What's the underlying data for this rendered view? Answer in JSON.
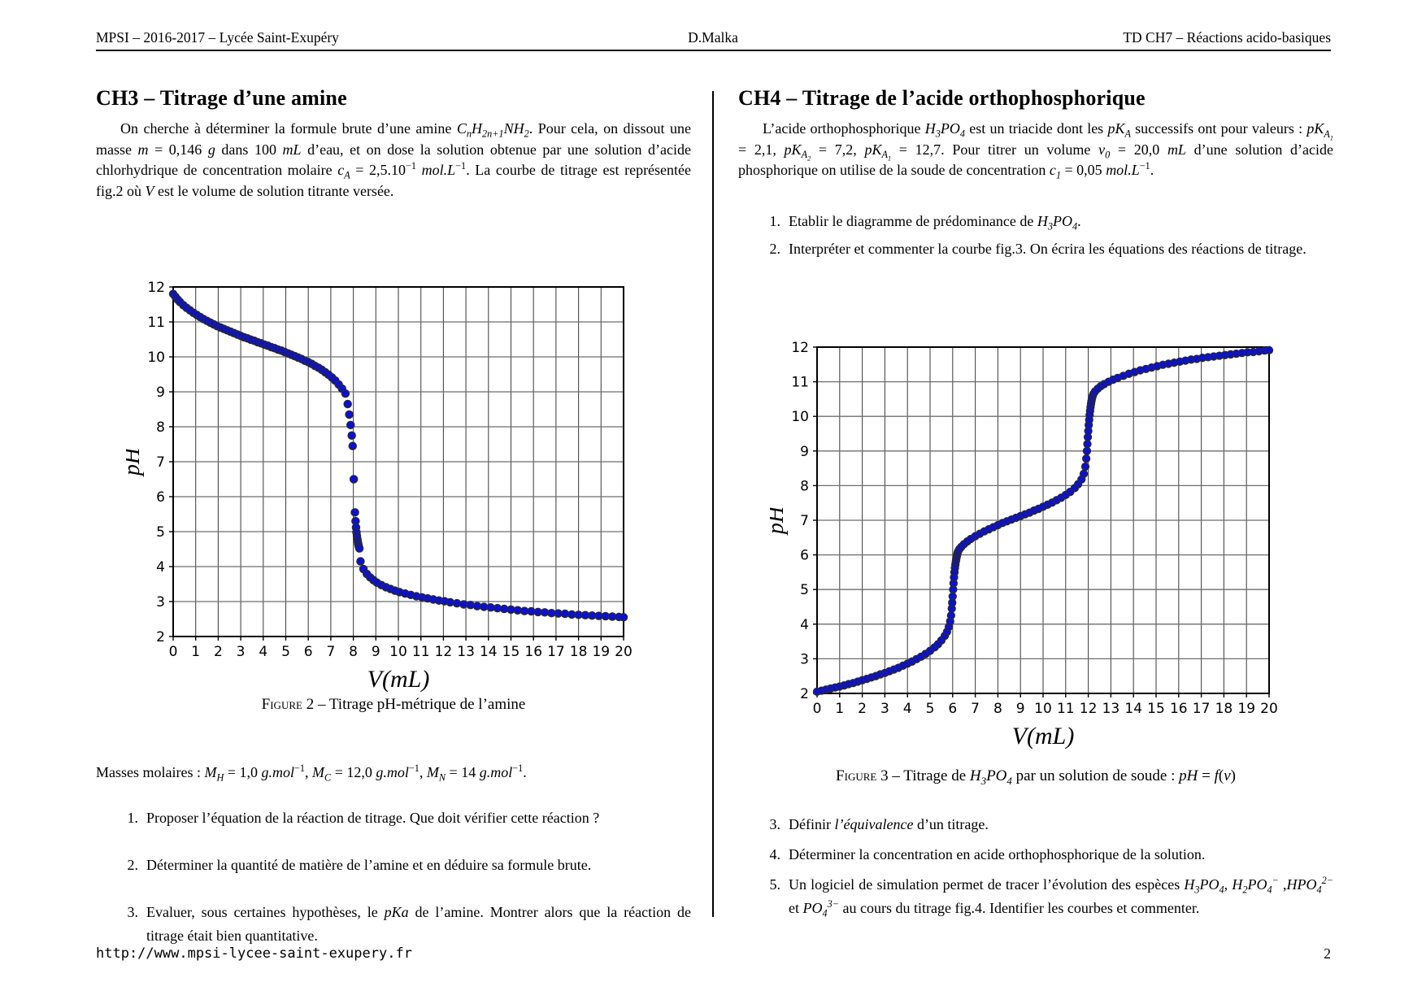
{
  "header": {
    "left": "MPSI – 2016-2017 – Lycée Saint-Exupéry",
    "center": "D.Malka",
    "right": "TD CH7 – Réactions acido-basiques"
  },
  "footer": {
    "url": "http://www.mpsi-lycee-saint-exupery.fr",
    "page_number": "2"
  },
  "left_column": {
    "title": "CH3 – Titrage d’une amine",
    "intro_html": "On cherche à déterminer la formule brute d’une amine <i>C<sub>n</sub>H<sub>2n+1</sub>NH<sub>2</sub></i>. Pour cela, on dissout une masse <i>m</i> = 0,146 <i>g</i> dans 100 <i>mL</i> d’eau, et on dose la solution obtenue par une solution d’acide chlorhydrique de concentration molaire <i>c<sub>A</sub></i> = 2,5.10<sup>−1</sup> <i>mol.L</i><sup>−1</sup>. La courbe de titrage est représentée fig.2 où <i>V</i> est le volume de solution titrante versée.",
    "figure2_caption_label": "Figure 2",
    "figure2_caption_html": "– Titrage pH-métrique de l’amine",
    "masses_html": "Masses molaires : <i>M<sub>H</sub></i> = 1,0 <i>g.mol</i><sup>−1</sup>, <i>M<sub>C</sub></i> = 12,0 <i>g.mol</i><sup>−1</sup>, <i>M<sub>N</sub></i> = 14 <i>g.mol</i><sup>−1</sup>.",
    "items": [
      {
        "num": "1.",
        "html": "Proposer l’équation de la réaction de titrage. Que doit vérifier cette réaction ?"
      },
      {
        "num": "2.",
        "html": "Déterminer la quantité de matière de l’amine et en déduire sa formule brute."
      },
      {
        "num": "3.",
        "html": "Evaluer, sous certaines hypothèses, le <i>pKa</i> de l’amine. Montrer alors que la réaction de titrage était bien quantitative."
      }
    ]
  },
  "right_column": {
    "title": "CH4 – Titrage de l’acide orthophosphorique",
    "intro_html": "L’acide orthophosphorique <i>H<sub>3</sub>PO<sub>4</sub></i> est un triacide dont les <i>pK<sub>A</sub></i> successifs ont pour valeurs : <i>pK<sub>A<sub>1</sub></sub></i> = 2,1, <i>pK<sub>A<sub>2</sub></sub></i> = 7,2, <i>pK<sub>A<sub>1</sub></sub></i> = 12,7. Pour titrer un volume <i>v<sub>0</sub></i> = 20,0 <i>mL</i> d’une solution d’acide phosphorique on utilise de la soude de concentration <i>c<sub>1</sub></i> = 0,05 <i>mol.L</i><sup>−1</sup>.",
    "items_top": [
      {
        "num": "1.",
        "html": "Etablir le diagramme de prédominance de <i>H<sub>3</sub>PO<sub>4</sub></i>."
      },
      {
        "num": "2.",
        "html": "Interpréter et commenter la courbe fig.3. On écrira les équations des réactions de titrage."
      }
    ],
    "figure3_caption_label": "Figure 3",
    "figure3_caption_html": "– Titrage de <i>H<sub>3</sub>PO<sub>4</sub></i> par un solution de soude : <i>pH</i> = <i>f</i>(<i>v</i>)",
    "items_bottom": [
      {
        "num": "3.",
        "html": "Définir <i>l’équivalence</i> d’un titrage."
      },
      {
        "num": "4.",
        "html": "Déterminer la concentration en acide orthophosphorique de la solution."
      },
      {
        "num": "5.",
        "html": "Un logiciel de simulation permet de tracer l’évolution des espèces <i>H<sub>3</sub>PO<sub>4</sub></i>, <i>H<sub>2</sub>PO<sub>4</sub><sup>−</sup></i> ,<i>HPO<sub>4</sub><sup>2−</sup></i> et <i>PO<sub>4</sub><sup>3−</sup></i> au cours du titrage fig.4. Identifier les courbes et commenter."
      }
    ]
  },
  "chart_data": [
    {
      "name": "figure-2-titration-amine",
      "type": "scatter",
      "title": "",
      "xlabel": "V(mL)",
      "ylabel": "pH",
      "xlim": [
        0,
        20
      ],
      "ylim": [
        2,
        12
      ],
      "xtick_step": 1,
      "ytick_step": 1,
      "grid": true,
      "legend": "none",
      "marker": {
        "fill": "#0a10d8",
        "edge": "#2a2a2a",
        "radius": 4.6
      },
      "equivalence_volume_mL": 8,
      "points": [
        [
          0,
          11.8
        ],
        [
          0.1,
          11.72
        ],
        [
          0.2,
          11.64
        ],
        [
          0.3,
          11.57
        ],
        [
          0.45,
          11.48
        ],
        [
          0.6,
          11.4
        ],
        [
          0.75,
          11.33
        ],
        [
          0.9,
          11.26
        ],
        [
          1.05,
          11.2
        ],
        [
          1.2,
          11.14
        ],
        [
          1.35,
          11.08
        ],
        [
          1.5,
          11.03
        ],
        [
          1.65,
          10.98
        ],
        [
          1.8,
          10.93
        ],
        [
          1.95,
          10.88
        ],
        [
          2.1,
          10.84
        ],
        [
          2.25,
          10.8
        ],
        [
          2.4,
          10.76
        ],
        [
          2.55,
          10.72
        ],
        [
          2.7,
          10.68
        ],
        [
          2.85,
          10.64
        ],
        [
          3,
          10.6
        ],
        [
          3.15,
          10.56
        ],
        [
          3.3,
          10.53
        ],
        [
          3.45,
          10.49
        ],
        [
          3.6,
          10.46
        ],
        [
          3.75,
          10.42
        ],
        [
          3.9,
          10.39
        ],
        [
          4.05,
          10.35
        ],
        [
          4.2,
          10.32
        ],
        [
          4.35,
          10.28
        ],
        [
          4.5,
          10.25
        ],
        [
          4.65,
          10.21
        ],
        [
          4.8,
          10.18
        ],
        [
          4.95,
          10.14
        ],
        [
          5.1,
          10.1
        ],
        [
          5.25,
          10.06
        ],
        [
          5.4,
          10.02
        ],
        [
          5.55,
          9.98
        ],
        [
          5.7,
          9.94
        ],
        [
          5.85,
          9.89
        ],
        [
          6,
          9.85
        ],
        [
          6.15,
          9.8
        ],
        [
          6.3,
          9.74
        ],
        [
          6.45,
          9.69
        ],
        [
          6.6,
          9.63
        ],
        [
          6.75,
          9.56
        ],
        [
          6.9,
          9.49
        ],
        [
          7.05,
          9.41
        ],
        [
          7.2,
          9.32
        ],
        [
          7.35,
          9.21
        ],
        [
          7.5,
          9.09
        ],
        [
          7.65,
          8.95
        ],
        [
          7.75,
          8.65
        ],
        [
          7.82,
          8.35
        ],
        [
          7.88,
          8.05
        ],
        [
          7.93,
          7.75
        ],
        [
          7.97,
          7.45
        ],
        [
          8.02,
          6.5
        ],
        [
          8.07,
          5.55
        ],
        [
          8.1,
          5.3
        ],
        [
          8.12,
          5.12
        ],
        [
          8.14,
          4.98
        ],
        [
          8.16,
          4.88
        ],
        [
          8.18,
          4.79
        ],
        [
          8.2,
          4.71
        ],
        [
          8.22,
          4.64
        ],
        [
          8.24,
          4.58
        ],
        [
          8.27,
          4.52
        ],
        [
          8.32,
          4.15
        ],
        [
          8.45,
          3.93
        ],
        [
          8.6,
          3.79
        ],
        [
          8.75,
          3.69
        ],
        [
          8.9,
          3.61
        ],
        [
          9.05,
          3.54
        ],
        [
          9.25,
          3.47
        ],
        [
          9.45,
          3.41
        ],
        [
          9.65,
          3.36
        ],
        [
          9.85,
          3.31
        ],
        [
          10.05,
          3.27
        ],
        [
          10.3,
          3.23
        ],
        [
          10.55,
          3.19
        ],
        [
          10.8,
          3.15
        ],
        [
          11.05,
          3.12
        ],
        [
          11.3,
          3.09
        ],
        [
          11.55,
          3.06
        ],
        [
          11.8,
          3.03
        ],
        [
          12.05,
          3.01
        ],
        [
          12.3,
          2.98
        ],
        [
          12.6,
          2.95
        ],
        [
          12.9,
          2.92
        ],
        [
          13.2,
          2.9
        ],
        [
          13.5,
          2.87
        ],
        [
          13.8,
          2.85
        ],
        [
          14.1,
          2.83
        ],
        [
          14.4,
          2.81
        ],
        [
          14.7,
          2.79
        ],
        [
          15,
          2.77
        ],
        [
          15.3,
          2.75
        ],
        [
          15.6,
          2.73
        ],
        [
          15.9,
          2.72
        ],
        [
          16.2,
          2.7
        ],
        [
          16.5,
          2.69
        ],
        [
          16.8,
          2.67
        ],
        [
          17.1,
          2.66
        ],
        [
          17.4,
          2.65
        ],
        [
          17.7,
          2.63
        ],
        [
          18,
          2.62
        ],
        [
          18.3,
          2.61
        ],
        [
          18.6,
          2.6
        ],
        [
          18.9,
          2.59
        ],
        [
          19.2,
          2.58
        ],
        [
          19.5,
          2.57
        ],
        [
          19.8,
          2.56
        ],
        [
          20,
          2.55
        ]
      ]
    },
    {
      "name": "figure-3-titration-h3po4",
      "type": "scatter",
      "title": "",
      "xlabel": "V(mL)",
      "ylabel": "pH",
      "xlim": [
        0,
        20
      ],
      "ylim": [
        2,
        12
      ],
      "xtick_step": 1,
      "ytick_step": 1,
      "grid": true,
      "legend": "none",
      "marker": {
        "fill": "#0a10d8",
        "edge": "#2a2a2a",
        "radius": 4.5
      },
      "equivalence_volumes_mL": [
        6,
        12
      ],
      "points": [
        [
          0,
          2.05
        ],
        [
          0.2,
          2.08
        ],
        [
          0.4,
          2.11
        ],
        [
          0.6,
          2.14
        ],
        [
          0.8,
          2.17
        ],
        [
          1,
          2.2
        ],
        [
          1.2,
          2.23
        ],
        [
          1.4,
          2.27
        ],
        [
          1.6,
          2.3
        ],
        [
          1.8,
          2.34
        ],
        [
          2,
          2.38
        ],
        [
          2.2,
          2.42
        ],
        [
          2.4,
          2.46
        ],
        [
          2.6,
          2.5
        ],
        [
          2.8,
          2.55
        ],
        [
          3,
          2.59
        ],
        [
          3.2,
          2.64
        ],
        [
          3.4,
          2.69
        ],
        [
          3.6,
          2.74
        ],
        [
          3.8,
          2.8
        ],
        [
          4,
          2.86
        ],
        [
          4.2,
          2.92
        ],
        [
          4.4,
          2.99
        ],
        [
          4.6,
          3.06
        ],
        [
          4.8,
          3.14
        ],
        [
          5,
          3.23
        ],
        [
          5.2,
          3.33
        ],
        [
          5.35,
          3.42
        ],
        [
          5.5,
          3.53
        ],
        [
          5.65,
          3.66
        ],
        [
          5.75,
          3.78
        ],
        [
          5.83,
          3.92
        ],
        [
          5.89,
          4.08
        ],
        [
          5.93,
          4.25
        ],
        [
          5.96,
          4.45
        ],
        [
          5.98,
          4.62
        ],
        [
          6,
          4.8
        ],
        [
          6.02,
          5
        ],
        [
          6.04,
          5.18
        ],
        [
          6.06,
          5.35
        ],
        [
          6.08,
          5.5
        ],
        [
          6.1,
          5.62
        ],
        [
          6.12,
          5.72
        ],
        [
          6.14,
          5.81
        ],
        [
          6.16,
          5.88
        ],
        [
          6.18,
          5.95
        ],
        [
          6.2,
          6.01
        ],
        [
          6.22,
          6.06
        ],
        [
          6.25,
          6.11
        ],
        [
          6.3,
          6.17
        ],
        [
          6.38,
          6.23
        ],
        [
          6.5,
          6.31
        ],
        [
          6.65,
          6.39
        ],
        [
          6.8,
          6.46
        ],
        [
          7,
          6.54
        ],
        [
          7.2,
          6.61
        ],
        [
          7.4,
          6.68
        ],
        [
          7.6,
          6.74
        ],
        [
          7.8,
          6.8
        ],
        [
          8,
          6.86
        ],
        [
          8.2,
          6.92
        ],
        [
          8.4,
          6.97
        ],
        [
          8.6,
          7.02
        ],
        [
          8.8,
          7.07
        ],
        [
          9,
          7.12
        ],
        [
          9.2,
          7.17
        ],
        [
          9.4,
          7.22
        ],
        [
          9.6,
          7.28
        ],
        [
          9.8,
          7.33
        ],
        [
          10,
          7.39
        ],
        [
          10.2,
          7.45
        ],
        [
          10.4,
          7.51
        ],
        [
          10.6,
          7.58
        ],
        [
          10.8,
          7.65
        ],
        [
          11,
          7.73
        ],
        [
          11.2,
          7.82
        ],
        [
          11.4,
          7.93
        ],
        [
          11.55,
          8.04
        ],
        [
          11.7,
          8.18
        ],
        [
          11.8,
          8.34
        ],
        [
          11.87,
          8.55
        ],
        [
          11.91,
          8.78
        ],
        [
          11.94,
          9
        ],
        [
          11.96,
          9.2
        ],
        [
          11.98,
          9.4
        ],
        [
          12,
          9.58
        ],
        [
          12.02,
          9.75
        ],
        [
          12.04,
          9.9
        ],
        [
          12.06,
          10.04
        ],
        [
          12.08,
          10.16
        ],
        [
          12.1,
          10.27
        ],
        [
          12.12,
          10.36
        ],
        [
          12.14,
          10.44
        ],
        [
          12.16,
          10.51
        ],
        [
          12.19,
          10.58
        ],
        [
          12.23,
          10.65
        ],
        [
          12.3,
          10.72
        ],
        [
          12.42,
          10.8
        ],
        [
          12.55,
          10.87
        ],
        [
          12.7,
          10.93
        ],
        [
          12.9,
          11
        ],
        [
          13.1,
          11.06
        ],
        [
          13.3,
          11.11
        ],
        [
          13.55,
          11.17
        ],
        [
          13.8,
          11.23
        ],
        [
          14.05,
          11.28
        ],
        [
          14.3,
          11.33
        ],
        [
          14.55,
          11.37
        ],
        [
          14.8,
          11.41
        ],
        [
          15.05,
          11.45
        ],
        [
          15.3,
          11.49
        ],
        [
          15.55,
          11.52
        ],
        [
          15.8,
          11.55
        ],
        [
          16.05,
          11.58
        ],
        [
          16.3,
          11.61
        ],
        [
          16.55,
          11.64
        ],
        [
          16.8,
          11.66
        ],
        [
          17.05,
          11.69
        ],
        [
          17.3,
          11.71
        ],
        [
          17.55,
          11.73
        ],
        [
          17.8,
          11.75
        ],
        [
          18.05,
          11.77
        ],
        [
          18.3,
          11.79
        ],
        [
          18.55,
          11.81
        ],
        [
          18.8,
          11.83
        ],
        [
          19.05,
          11.85
        ],
        [
          19.3,
          11.86
        ],
        [
          19.55,
          11.88
        ],
        [
          19.8,
          11.9
        ],
        [
          20,
          11.91
        ]
      ]
    }
  ],
  "chart_style": {
    "grid_color_v": "#4a4a4a",
    "grid_color_h": "#6e6e6e",
    "frame_color": "#000000",
    "tick_label_color": "#000000"
  }
}
